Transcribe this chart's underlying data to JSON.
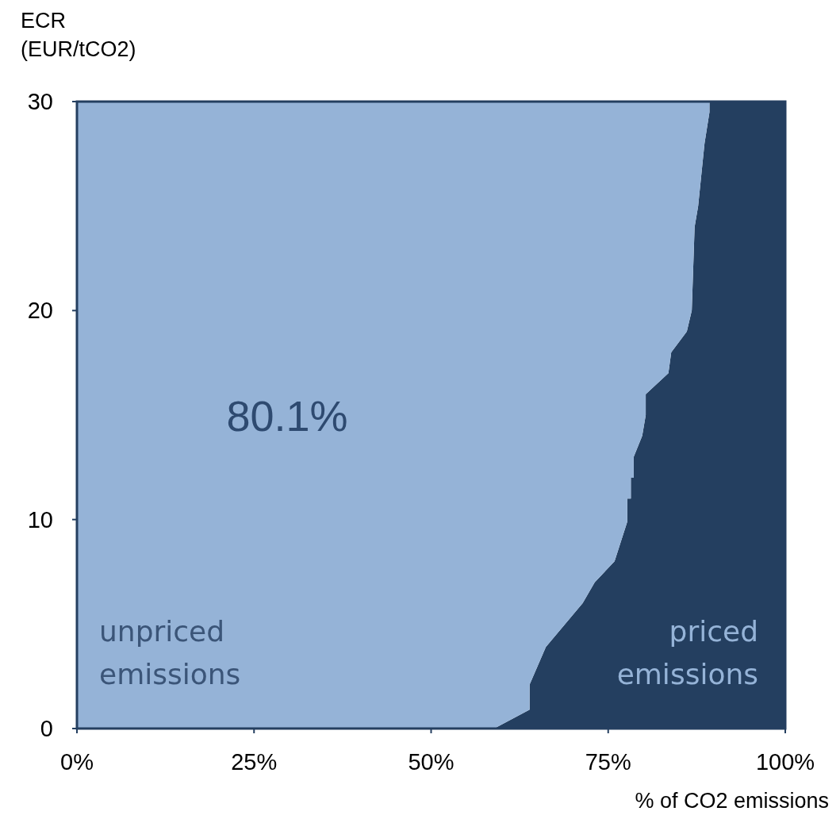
{
  "chart_data": {
    "type": "area",
    "ylabel": "ECR\n(EUR/tCO2)",
    "xlabel": "% of CO2 emissions",
    "xlim": [
      0,
      100
    ],
    "ylim": [
      0,
      30
    ],
    "xticks": [
      {
        "value": 0,
        "label": "0%"
      },
      {
        "value": 25,
        "label": "25%"
      },
      {
        "value": 50,
        "label": "50%"
      },
      {
        "value": 75,
        "label": "75%"
      },
      {
        "value": 100,
        "label": "100%"
      }
    ],
    "yticks": [
      0,
      10,
      20,
      30
    ],
    "x": [
      0,
      58.9,
      63.9,
      63.9,
      66.2,
      71.4,
      73.1,
      75.9,
      77.7,
      77.7,
      78.2,
      78.2,
      78.6,
      78.6,
      79.8,
      80.3,
      80.3,
      83.5,
      83.9,
      86.1,
      86.8,
      87.2,
      87.7,
      88.6,
      89.3,
      89.3,
      100
    ],
    "series": [
      {
        "name": "priced emissions",
        "color": "#243f60",
        "values": [
          0,
          0,
          0.9,
          2.1,
          3.9,
          6,
          7,
          8,
          9.9,
          11,
          11,
          12,
          12,
          13,
          14,
          15,
          16,
          17,
          18,
          19,
          20,
          24,
          25,
          28,
          29.5,
          30,
          30
        ]
      },
      {
        "name": "unpriced emissions",
        "color": "#95b3d7",
        "values": [
          30,
          30,
          29.1,
          27.9,
          26.1,
          24,
          23,
          22,
          20.1,
          19,
          19,
          18,
          18,
          17,
          16,
          15,
          14,
          13,
          12,
          11,
          10,
          6,
          5,
          2,
          0.5,
          null,
          null
        ]
      }
    ],
    "stacked": true,
    "annotations": [
      "80.1%"
    ],
    "grid": false,
    "legend": false
  }
}
